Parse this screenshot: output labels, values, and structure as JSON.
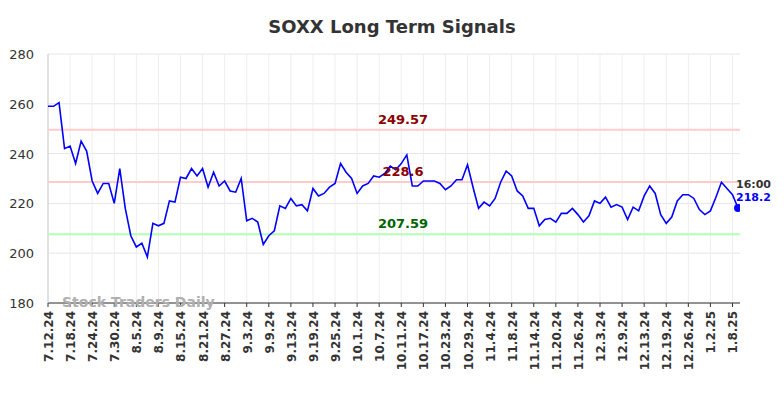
{
  "chart_data": {
    "type": "line",
    "title": "SOXX Long Term Signals",
    "watermark": "Stock Traders Daily",
    "last_label": "16:00",
    "color": "#0000ff",
    "grid": true,
    "ylim": [
      180,
      280
    ],
    "yticks": [
      180,
      200,
      220,
      240,
      260,
      280
    ],
    "signals": [
      {
        "value": 249.57,
        "color": "#ffcccc",
        "label_color": "#8b0000"
      },
      {
        "value": 228.6,
        "color": "#ffcccc",
        "label_color": "#8b0000"
      },
      {
        "value": 207.59,
        "color": "#b3ffb3",
        "label_color": "#006400"
      }
    ],
    "categories": [
      "7.12.24",
      null,
      null,
      null,
      "7.18.24",
      null,
      null,
      null,
      "7.24.24",
      null,
      null,
      null,
      "7.30.24",
      null,
      null,
      null,
      "8.5.24",
      null,
      null,
      null,
      "8.9.24",
      null,
      null,
      null,
      "8.15.24",
      null,
      null,
      null,
      "8.21.24",
      null,
      null,
      null,
      "8.27.24",
      null,
      null,
      null,
      "9.3.24",
      null,
      null,
      null,
      "9.9.24",
      null,
      null,
      null,
      "9.13.24",
      null,
      null,
      null,
      "9.19.24",
      null,
      null,
      null,
      "9.25.24",
      null,
      null,
      null,
      "10.1.24",
      null,
      null,
      null,
      "10.7.24",
      null,
      null,
      null,
      "10.11.24",
      null,
      null,
      null,
      "10.17.24",
      null,
      null,
      null,
      "10.23.24",
      null,
      null,
      null,
      "10.29.24",
      null,
      null,
      null,
      "11.4.24",
      null,
      null,
      null,
      "11.8.24",
      null,
      null,
      null,
      "11.14.24",
      null,
      null,
      null,
      "11.20.24",
      null,
      null,
      null,
      "11.26.24",
      null,
      null,
      null,
      "12.3.24",
      null,
      null,
      null,
      "12.9.24",
      null,
      null,
      null,
      "12.13.24",
      null,
      null,
      null,
      "12.19.24",
      null,
      null,
      null,
      "12.26.24",
      null,
      null,
      null,
      "1.2.25",
      null,
      null,
      null,
      "1.8.25",
      null
    ],
    "values": [
      259,
      259,
      260.5,
      242,
      243,
      236,
      245,
      241,
      229,
      224,
      228,
      228,
      220,
      234,
      218,
      207,
      202.5,
      204,
      198.5,
      212,
      211,
      212,
      221,
      220.5,
      230.5,
      230,
      234,
      231,
      234,
      226.5,
      232.5,
      227,
      229,
      225,
      224.5,
      230,
      213,
      214,
      212.5,
      203.5,
      207,
      209,
      219,
      218,
      222,
      219,
      219.5,
      217,
      226,
      223,
      224,
      226.5,
      228,
      236,
      232.5,
      230,
      224,
      227,
      228,
      231,
      230.5,
      232,
      235,
      233.5,
      236,
      239.5,
      227,
      227,
      229,
      229,
      229,
      228,
      225.5,
      227,
      229.5,
      229.5,
      235.5,
      226.5,
      218,
      220.5,
      219,
      222,
      228.5,
      233,
      231,
      225,
      223,
      218,
      218,
      211,
      213.5,
      214,
      212.5,
      216,
      216,
      218,
      215.5,
      212.5,
      215,
      221,
      220,
      222.5,
      218.5,
      219.5,
      218.5,
      213.5,
      218.5,
      217,
      223,
      227,
      224,
      215.5,
      212,
      214.5,
      221,
      223.5,
      223.5,
      222,
      217.5,
      215.5,
      217,
      222.5,
      228.5,
      226,
      223.5,
      218.2
    ]
  }
}
